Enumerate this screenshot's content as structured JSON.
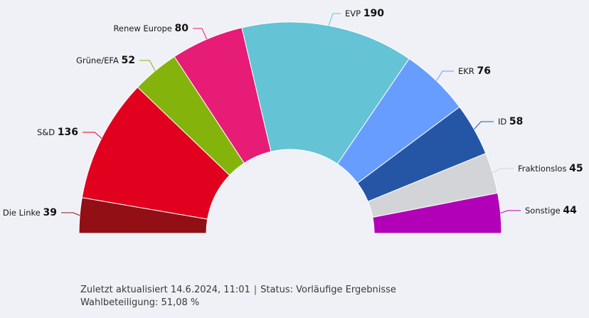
{
  "chart_data": {
    "type": "pie",
    "variant": "semicircle-parliament",
    "series": [
      {
        "name": "Die Linke",
        "value": 39,
        "color": "#920f16",
        "label_side": "left"
      },
      {
        "name": "S&D",
        "value": 136,
        "color": "#e2001f",
        "label_side": "left"
      },
      {
        "name": "Grüne/EFA",
        "value": 52,
        "color": "#84b40c",
        "label_side": "left"
      },
      {
        "name": "Renew Europe",
        "value": 80,
        "color": "#e61c76",
        "label_side": "left"
      },
      {
        "name": "EVP",
        "value": 190,
        "color": "#64c3d5",
        "label_side": "top"
      },
      {
        "name": "EKR",
        "value": 76,
        "color": "#679dff",
        "label_side": "right"
      },
      {
        "name": "ID",
        "value": 58,
        "color": "#2556a6",
        "label_side": "right"
      },
      {
        "name": "Fraktionslos",
        "value": 45,
        "color": "#d3d4d8",
        "label_side": "right"
      },
      {
        "name": "Sonstige",
        "value": 44,
        "color": "#b100b7",
        "label_side": "right"
      }
    ]
  },
  "footer": {
    "updated": "Zuletzt aktualisiert 14.6.2024, 11:01",
    "separator": "|",
    "status": "Status: Vorläufige Ergebnisse",
    "turnout": "Wahlbeteiligung: 51,08 %"
  }
}
